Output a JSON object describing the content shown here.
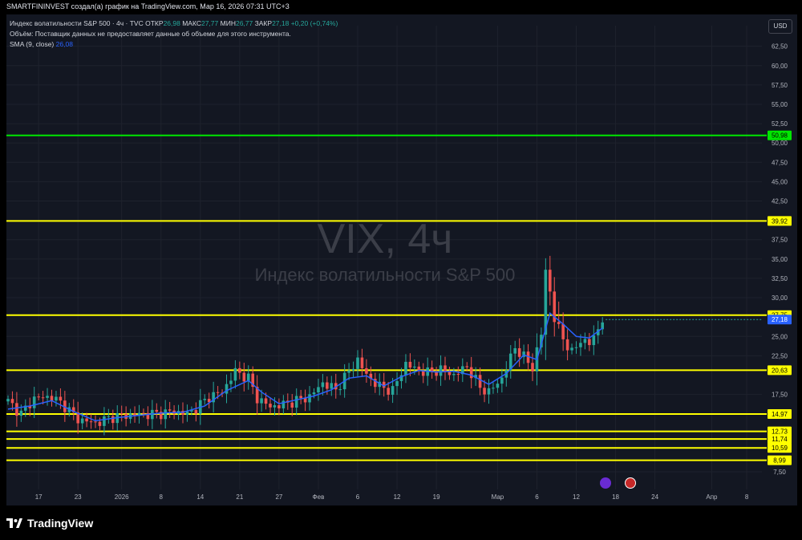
{
  "header": {
    "attribution": "SMARTFININVEST создал(а) график на TradingView.com, Мар 16, 2026 07:31 UTC+3"
  },
  "legend": {
    "instrument": "Индекс волатильности S&P 500 · 4ч · TVC",
    "open_label": "ОТКР",
    "open": "26,98",
    "high_label": "МАКС",
    "high": "27,77",
    "low_label": "МИН",
    "low": "26,77",
    "close_label": "ЗАКР",
    "close": "27,18",
    "change": "+0,20 (+0,74%)",
    "volume_note": "Объём: Поставщик данных не предоставляет данные об объеме для этого инструмента.",
    "sma_label": "SMA (9, close)",
    "sma_value": "26,08"
  },
  "currency": "USD",
  "watermark": {
    "symbol": "VIX, 4ч",
    "name": "Индекс волатильности S&P 500"
  },
  "brand": "TradingView",
  "colors": {
    "background": "#131722",
    "up": "#26a69a",
    "down": "#ef5350",
    "sma": "#2962ff",
    "level_yellow": "#ffff00",
    "level_green": "#00e600"
  },
  "chart_data": {
    "type": "candlestick",
    "symbol": "VIX",
    "timeframe": "4h",
    "ylim": [
      7.5,
      63.5
    ],
    "y_ticks": [
      {
        "v": 62.5,
        "t": "62,50"
      },
      {
        "v": 60,
        "t": "60,00"
      },
      {
        "v": 57.5,
        "t": "57,50"
      },
      {
        "v": 55,
        "t": "55,00"
      },
      {
        "v": 52.5,
        "t": "52,50"
      },
      {
        "v": 50,
        "t": "50,00"
      },
      {
        "v": 47.5,
        "t": "47,50"
      },
      {
        "v": 45,
        "t": "45,00"
      },
      {
        "v": 42.5,
        "t": "42,50"
      },
      {
        "v": 40,
        "t": "40,00"
      },
      {
        "v": 37.5,
        "t": "37,50"
      },
      {
        "v": 35,
        "t": "35,00"
      },
      {
        "v": 32.5,
        "t": "32,50"
      },
      {
        "v": 30,
        "t": "30,00"
      },
      {
        "v": 25,
        "t": "25,00"
      },
      {
        "v": 22.5,
        "t": "22,50"
      },
      {
        "v": 17.5,
        "t": "17,50"
      },
      {
        "v": 7.5,
        "t": "7,50"
      }
    ],
    "x_ticks": [
      {
        "i": 7,
        "t": "17"
      },
      {
        "i": 16,
        "t": "23"
      },
      {
        "i": 26,
        "t": "2026"
      },
      {
        "i": 35,
        "t": "8"
      },
      {
        "i": 44,
        "t": "14"
      },
      {
        "i": 53,
        "t": "21"
      },
      {
        "i": 62,
        "t": "27"
      },
      {
        "i": 71,
        "t": "Фев"
      },
      {
        "i": 80,
        "t": "6"
      },
      {
        "i": 89,
        "t": "12"
      },
      {
        "i": 98,
        "t": "19"
      },
      {
        "i": 112,
        "t": "Мар"
      },
      {
        "i": 121,
        "t": "6"
      },
      {
        "i": 130,
        "t": "12"
      },
      {
        "i": 139,
        "t": "18"
      },
      {
        "i": 148,
        "t": "24"
      },
      {
        "i": 161,
        "t": "Апр"
      },
      {
        "i": 169,
        "t": "8"
      }
    ],
    "levels": [
      {
        "value": 50.98,
        "label": "50,98",
        "color": "#00e600"
      },
      {
        "value": 39.92,
        "label": "39,92",
        "color": "#ffff00"
      },
      {
        "value": 27.75,
        "label": "27,75",
        "color": "#ffff00"
      },
      {
        "value": 20.63,
        "label": "20,63",
        "color": "#ffff00"
      },
      {
        "value": 14.97,
        "label": "14,97",
        "color": "#ffff00"
      },
      {
        "value": 12.73,
        "label": "12,73",
        "color": "#ffff00"
      },
      {
        "value": 11.74,
        "label": "11,74",
        "color": "#ffff00"
      },
      {
        "value": 10.59,
        "label": "10,59",
        "color": "#ffff00"
      },
      {
        "value": 8.99,
        "label": "8,99",
        "color": "#ffff00"
      }
    ],
    "last_price": {
      "value": 27.18,
      "label": "27,18"
    },
    "series": [
      {
        "name": "VIX",
        "close_path": [
          [
            0,
            16.6
          ],
          [
            3,
            15.0
          ],
          [
            6,
            17.0
          ],
          [
            10,
            17.2
          ],
          [
            13,
            16.0
          ],
          [
            16,
            14.3
          ],
          [
            20,
            13.8
          ],
          [
            24,
            14.6
          ],
          [
            29,
            14.9
          ],
          [
            34,
            15.0
          ],
          [
            38,
            15.3
          ],
          [
            41,
            15.0
          ],
          [
            43,
            15.7
          ],
          [
            46,
            17.2
          ],
          [
            49,
            17.8
          ],
          [
            52,
            20.5
          ],
          [
            55,
            19.6
          ],
          [
            57,
            17.0
          ],
          [
            60,
            15.9
          ],
          [
            63,
            16.2
          ],
          [
            66,
            16.7
          ],
          [
            69,
            17.2
          ],
          [
            72,
            19.0
          ],
          [
            75,
            18.1
          ],
          [
            78,
            20.5
          ],
          [
            80,
            22.0
          ],
          [
            82,
            20.0
          ],
          [
            85,
            18.5
          ],
          [
            88,
            18.0
          ],
          [
            91,
            21.5
          ],
          [
            93,
            20.8
          ],
          [
            96,
            20.3
          ],
          [
            99,
            20.7
          ],
          [
            102,
            20.0
          ],
          [
            105,
            21.1
          ],
          [
            108,
            18.4
          ],
          [
            110,
            17.8
          ],
          [
            113,
            19.6
          ],
          [
            116,
            23.6
          ],
          [
            118,
            22.3
          ],
          [
            120,
            21.0
          ],
          [
            122,
            25.3
          ],
          [
            123,
            33.6
          ],
          [
            124,
            30.8
          ],
          [
            125,
            27.2
          ],
          [
            127,
            24.8
          ],
          [
            129,
            22.8
          ],
          [
            131,
            24.6
          ],
          [
            133,
            24.0
          ],
          [
            135,
            26.0
          ],
          [
            136,
            27.18
          ]
        ]
      },
      {
        "name": "SMA (9, close)",
        "path": [
          [
            0,
            15.6
          ],
          [
            5,
            16.0
          ],
          [
            10,
            16.7
          ],
          [
            15,
            15.3
          ],
          [
            20,
            14.1
          ],
          [
            25,
            14.5
          ],
          [
            30,
            14.8
          ],
          [
            35,
            15.1
          ],
          [
            40,
            15.2
          ],
          [
            45,
            16.0
          ],
          [
            50,
            18.0
          ],
          [
            55,
            19.3
          ],
          [
            58,
            17.8
          ],
          [
            62,
            16.3
          ],
          [
            66,
            16.8
          ],
          [
            70,
            17.3
          ],
          [
            74,
            18.1
          ],
          [
            78,
            19.6
          ],
          [
            82,
            19.9
          ],
          [
            86,
            18.6
          ],
          [
            90,
            19.8
          ],
          [
            94,
            20.6
          ],
          [
            98,
            20.4
          ],
          [
            102,
            20.5
          ],
          [
            106,
            20.0
          ],
          [
            110,
            18.8
          ],
          [
            114,
            20.2
          ],
          [
            118,
            22.6
          ],
          [
            121,
            22.0
          ],
          [
            124,
            28.0
          ],
          [
            127,
            26.6
          ],
          [
            130,
            25.0
          ],
          [
            133,
            24.8
          ],
          [
            136,
            26.08
          ]
        ]
      }
    ]
  }
}
